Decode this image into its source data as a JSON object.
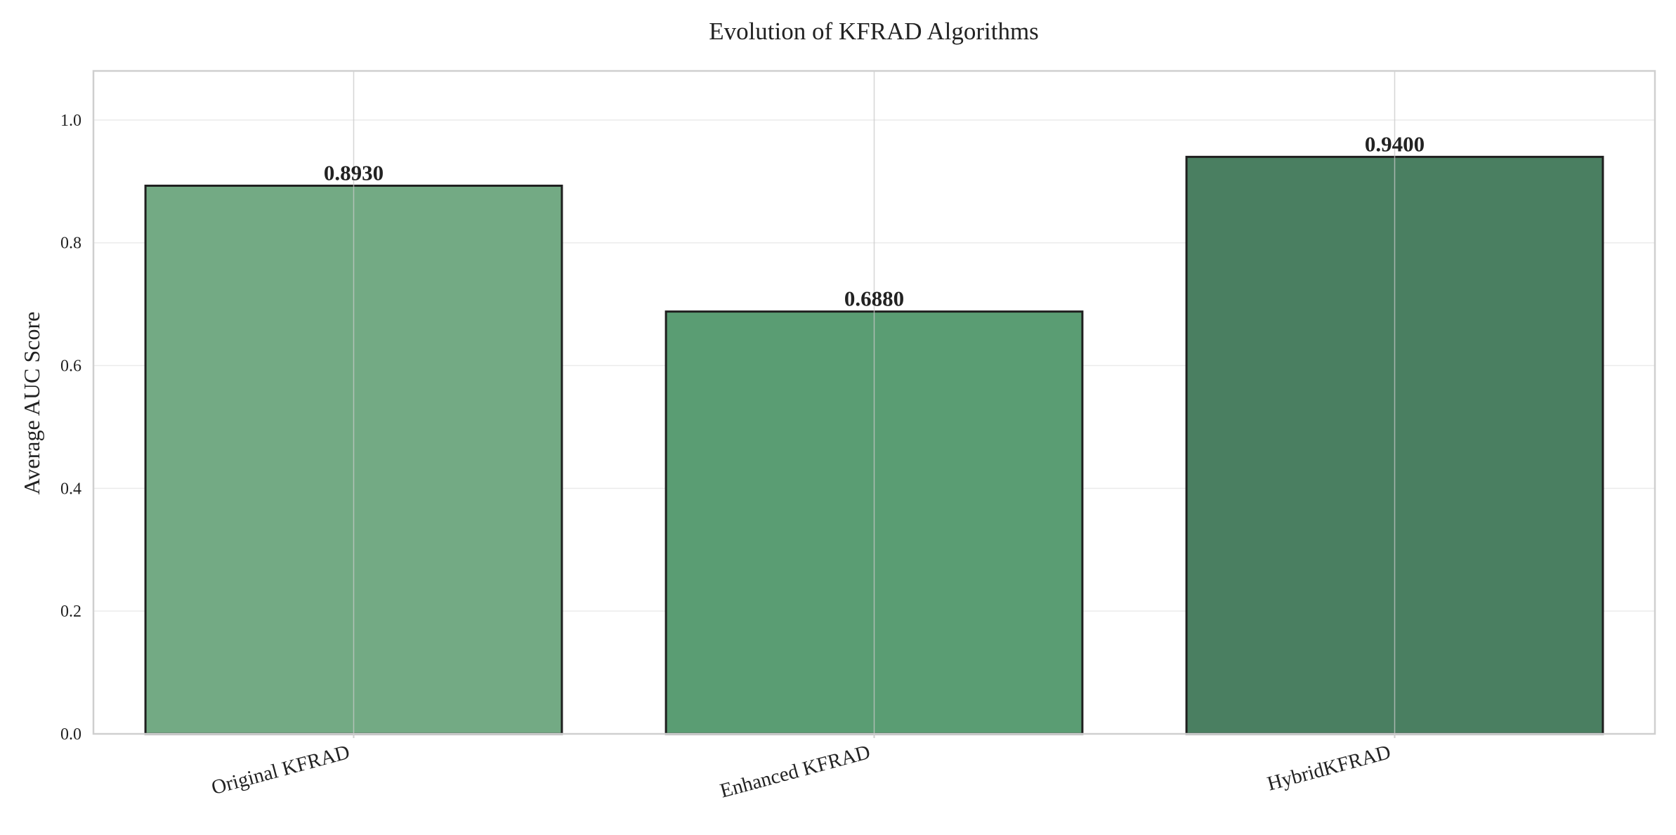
{
  "chart_data": {
    "type": "bar",
    "title": "Evolution of KFRAD Algorithms",
    "xlabel": "",
    "ylabel": "Average AUC Score",
    "categories": [
      "Original KFRAD",
      "Enhanced KFRAD",
      "HybridKFRAD"
    ],
    "values": [
      0.893,
      0.688,
      0.94
    ],
    "value_labels": [
      "0.8930",
      "0.6880",
      "0.9400"
    ],
    "ylim": [
      0,
      1.08
    ],
    "yticks": [
      0.0,
      0.2,
      0.4,
      0.6,
      0.8,
      1.0
    ],
    "ytick_labels": [
      "0.0",
      "0.2",
      "0.4",
      "0.6",
      "0.8",
      "1.0"
    ],
    "grid": true,
    "colors": [
      "#73aa84",
      "#5a9d73",
      "#4a7f61"
    ],
    "edge_color": "#1f1f1f"
  }
}
